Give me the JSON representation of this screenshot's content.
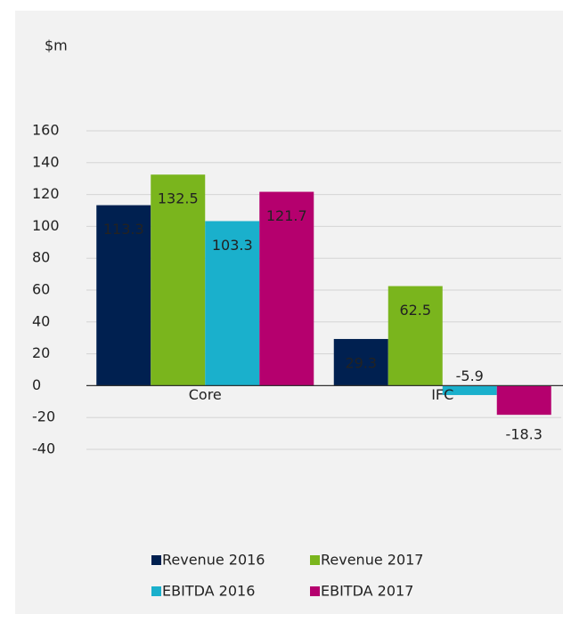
{
  "chart_data": {
    "type": "bar",
    "y_label": "$m",
    "categories": [
      "Core",
      "IFC"
    ],
    "series": [
      {
        "name": "Revenue 2016",
        "color": "#002050",
        "values": [
          113.3,
          29.3
        ]
      },
      {
        "name": "Revenue 2017",
        "color": "#7ab51d",
        "values": [
          132.5,
          62.5
        ]
      },
      {
        "name": "EBITDA 2016",
        "color": "#1ab0cc",
        "values": [
          103.3,
          -5.9
        ]
      },
      {
        "name": "EBITDA 2017",
        "color": "#b5006e",
        "values": [
          121.7,
          -18.3
        ]
      }
    ],
    "ylim": [
      -40,
      160
    ],
    "yticks": [
      -40,
      -20,
      0,
      20,
      40,
      60,
      80,
      100,
      120,
      140,
      160
    ],
    "grid": true
  }
}
